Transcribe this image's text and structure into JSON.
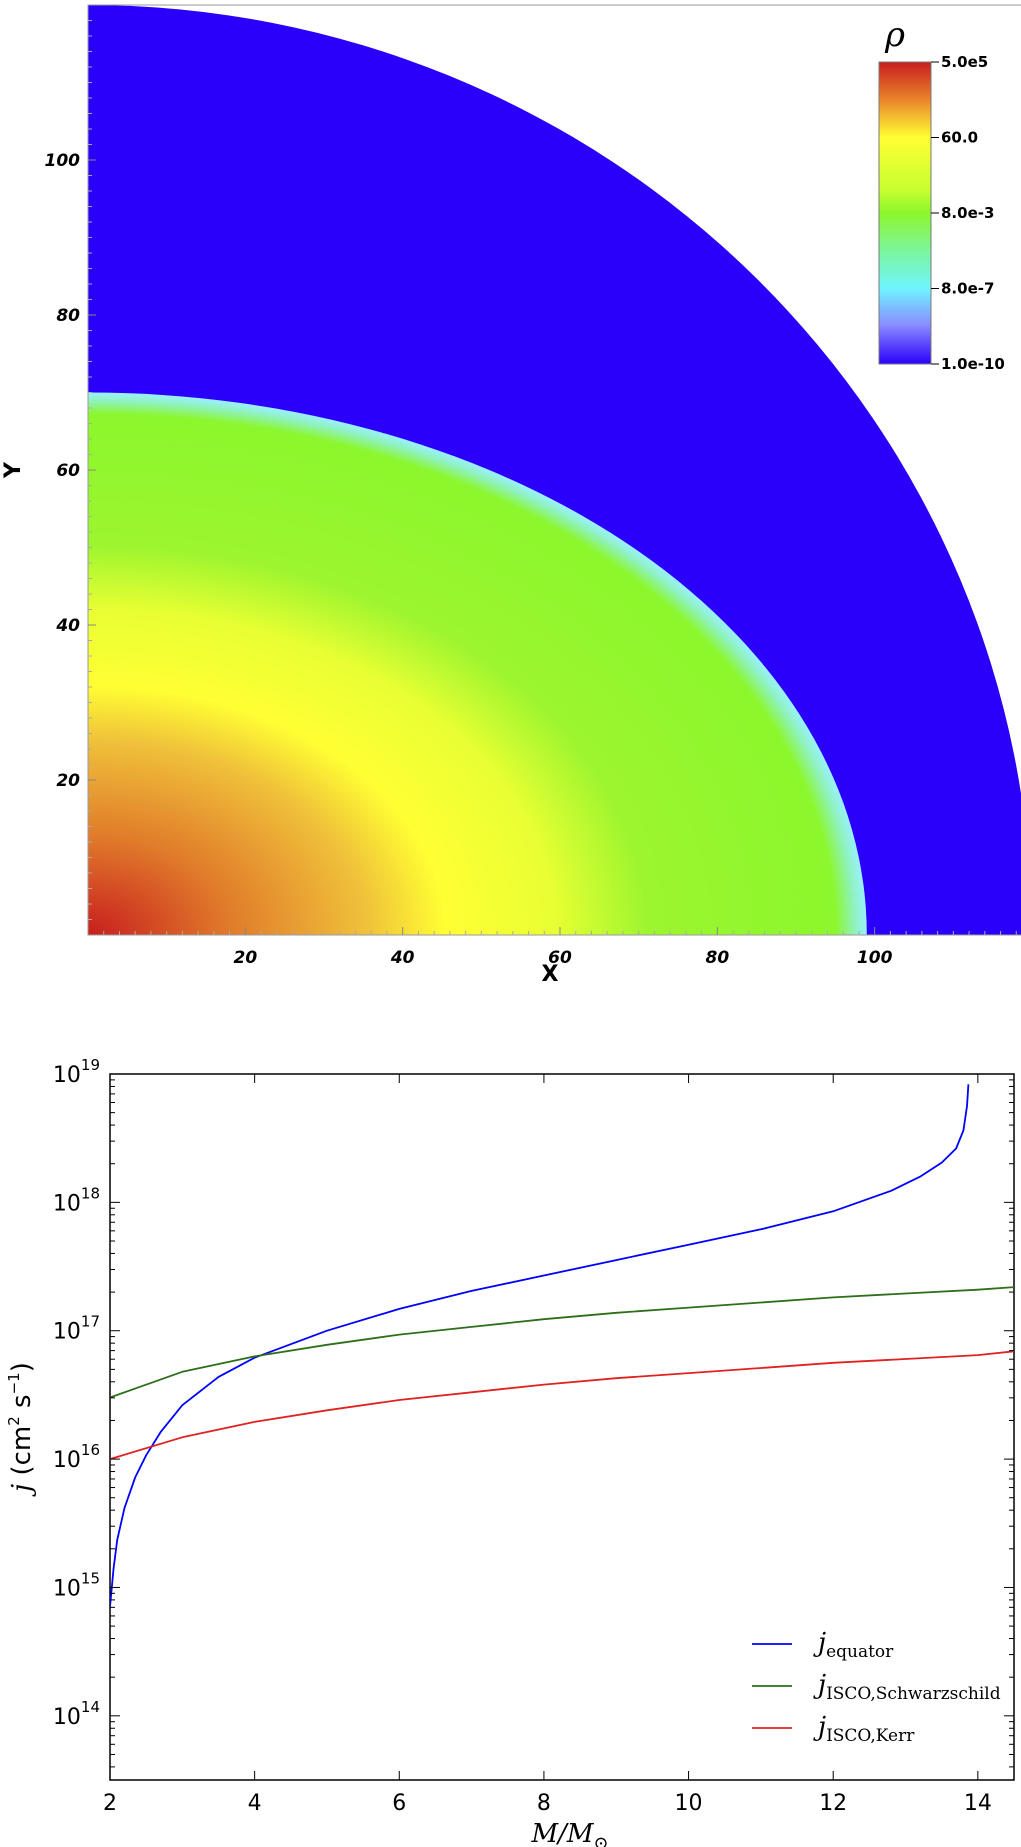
{
  "chart_data": [
    {
      "type": "heatmap",
      "xlabel": "X",
      "ylabel": "Y",
      "xlim": [
        0,
        120
      ],
      "ylim": [
        0,
        120
      ],
      "xticks": [
        20,
        40,
        60,
        80,
        100
      ],
      "yticks": [
        20,
        40,
        60,
        80,
        100
      ],
      "colorbar": {
        "label": "ρ",
        "ticks": [
          "5.0e5",
          "60.0",
          "8.0e-3",
          "8.0e-7",
          "1.0e-10"
        ],
        "scale": "log",
        "colormap": [
          "#c81e1e",
          "#e8a830",
          "#ffff33",
          "#8cf72c",
          "#6ff5ff",
          "#2b00fb"
        ]
      },
      "regions": {
        "domain_radius": 120,
        "star_equatorial_radius": 99,
        "star_polar_radius": 70,
        "background_color": "#2b00fb",
        "center_value": "5.0e5",
        "outer_star_value": "8.0e-3",
        "background_value": "1.0e-10"
      }
    },
    {
      "type": "line",
      "xlabel": "M/M",
      "xlabel_sub": "⊙",
      "ylabel": "j (cm",
      "ylabel_unit": " s",
      "yscale": "log",
      "xlim": [
        2,
        14.5
      ],
      "ylim_exp": [
        13.5,
        19
      ],
      "xticks": [
        2,
        4,
        6,
        8,
        10,
        12,
        14
      ],
      "yticks": [
        {
          "base": "10",
          "exp": "14",
          "value": 14
        },
        {
          "base": "10",
          "exp": "15",
          "value": 15
        },
        {
          "base": "10",
          "exp": "16",
          "value": 16
        },
        {
          "base": "10",
          "exp": "17",
          "value": 17
        },
        {
          "base": "10",
          "exp": "18",
          "value": 18
        },
        {
          "base": "10",
          "exp": "19",
          "value": 19
        }
      ],
      "legend_position": "lower-right",
      "series": [
        {
          "name": "j_equator",
          "label_main": "j",
          "label_sub": "equator",
          "color": "#0000ff",
          "x": [
            2.0,
            2.05,
            2.1,
            2.2,
            2.35,
            2.5,
            2.7,
            3.0,
            3.5,
            4.0,
            5.0,
            6.0,
            7.0,
            8.0,
            9.0,
            10.0,
            11.0,
            12.0,
            12.8,
            13.2,
            13.5,
            13.7,
            13.8,
            13.85,
            13.87
          ],
          "y_log10": [
            14.85,
            15.15,
            15.37,
            15.62,
            15.86,
            16.03,
            16.21,
            16.42,
            16.64,
            16.79,
            17.0,
            17.17,
            17.31,
            17.43,
            17.55,
            17.67,
            17.79,
            17.93,
            18.09,
            18.2,
            18.31,
            18.42,
            18.56,
            18.75,
            18.92
          ]
        },
        {
          "name": "j_ISCO,Schwarzschild",
          "label_main": "j",
          "label_sub": "ISCO,Schwarzschild",
          "color": "#2d6f1a",
          "x": [
            2,
            3,
            4,
            5,
            6,
            7,
            8,
            9,
            10,
            11,
            12,
            13,
            14,
            14.5
          ],
          "y_log10": [
            16.48,
            16.68,
            16.8,
            16.89,
            16.97,
            17.03,
            17.09,
            17.14,
            17.18,
            17.22,
            17.26,
            17.29,
            17.32,
            17.34
          ]
        },
        {
          "name": "j_ISCO,Kerr",
          "label_main": "j",
          "label_sub": "ISCO,Kerr",
          "color": "#e02222",
          "x": [
            2,
            3,
            4,
            5,
            6,
            7,
            8,
            9,
            10,
            11,
            12,
            13,
            14,
            14.5
          ],
          "y_log10": [
            16.0,
            16.17,
            16.29,
            16.38,
            16.46,
            16.52,
            16.58,
            16.63,
            16.67,
            16.71,
            16.75,
            16.78,
            16.81,
            16.84
          ]
        }
      ]
    }
  ]
}
